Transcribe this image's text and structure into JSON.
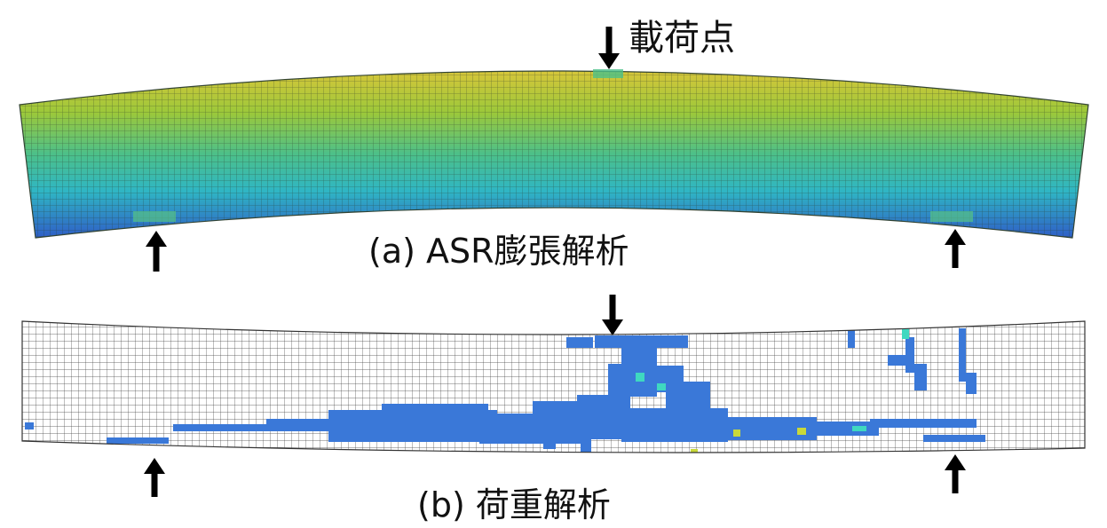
{
  "diagram": {
    "load_point_label": "載荷点",
    "caption_a": "(a) ASR膨張解析",
    "caption_b": "(b) 荷重解析",
    "colors": {
      "mesh_line": "#333333",
      "beam_top": "#d2c43a",
      "beam_mid": "#56c285",
      "beam_low": "#2fb5c8",
      "beam_bottom": "#2f63c8",
      "crack": "#3a78d8",
      "crack_hot": "#3fd8c0",
      "crack_peak": "#c8d83a",
      "arrow": "#000000"
    }
  }
}
